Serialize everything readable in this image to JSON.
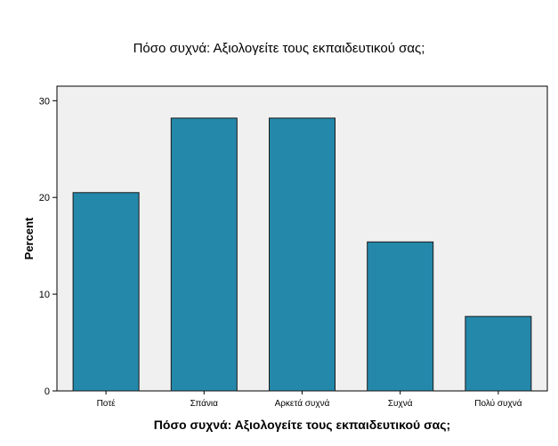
{
  "chart_data": {
    "type": "bar",
    "title": "Πόσο συχνά: Αξιολογείτε τους εκπαιδευτικού σας;",
    "xlabel": "Πόσο συχνά: Αξιολογείτε τους εκπαιδευτικού σας;",
    "ylabel": "Percent",
    "categories": [
      "Ποτέ",
      "Σπάνια",
      "Αρκετά συχνά",
      "Συχνά",
      "Πολύ συχνά"
    ],
    "values": [
      20.5,
      28.2,
      28.2,
      15.4,
      7.7
    ],
    "ylim": [
      0,
      31.5
    ],
    "yticks": [
      0,
      10,
      20,
      30
    ],
    "grid": false,
    "colors": {
      "bar_fill": "#2488aa",
      "bar_stroke": "#1a1a1a",
      "plot_background": "#f0f0f0",
      "axis": "#000000"
    }
  }
}
